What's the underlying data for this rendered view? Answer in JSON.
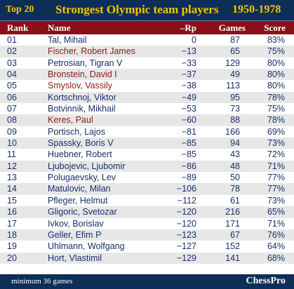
{
  "banner": {
    "top_label": "Top 20",
    "title": "Strongest Olympic team players",
    "years": "1950-1978"
  },
  "headers": {
    "rank": "Rank",
    "name": "Name",
    "rp": "–Rp",
    "games": "Games",
    "score": "Score"
  },
  "rows": [
    {
      "rank": "01",
      "name": "Tal, Mihail",
      "rp": "0",
      "games": "87",
      "score": "83%",
      "highlight": false
    },
    {
      "rank": "02",
      "name": "Fischer, Robert James",
      "rp": "−13",
      "games": "65",
      "score": "75%",
      "highlight": true
    },
    {
      "rank": "03",
      "name": "Petrosian, Tigran V",
      "rp": "−33",
      "games": "129",
      "score": "80%",
      "highlight": false
    },
    {
      "rank": "04",
      "name": "Bronstein, David I",
      "rp": "−37",
      "games": "49",
      "score": "80%",
      "highlight": true
    },
    {
      "rank": "05",
      "name": "Smyslov, Vassily",
      "rp": "−38",
      "games": "113",
      "score": "80%",
      "highlight": true
    },
    {
      "rank": "06",
      "name": "Kortschnoj, Viktor",
      "rp": "−49",
      "games": "95",
      "score": "78%",
      "highlight": false
    },
    {
      "rank": "07",
      "name": "Botvinnik, Mikhail",
      "rp": "−53",
      "games": "73",
      "score": "75%",
      "highlight": false
    },
    {
      "rank": "08",
      "name": "Keres, Paul",
      "rp": "−60",
      "games": "88",
      "score": "78%",
      "highlight": true
    },
    {
      "rank": "09",
      "name": "Portisch, Lajos",
      "rp": "−81",
      "games": "166",
      "score": "69%",
      "highlight": false
    },
    {
      "rank": "10",
      "name": "Spassky, Boris V",
      "rp": "−85",
      "games": "94",
      "score": "73%",
      "highlight": false
    },
    {
      "rank": "11",
      "name": "Huebner, Robert",
      "rp": "−85",
      "games": "43",
      "score": "72%",
      "highlight": false
    },
    {
      "rank": "12",
      "name": "Ljubojevic, Ljubomir",
      "rp": "−86",
      "games": "48",
      "score": "71%",
      "highlight": false
    },
    {
      "rank": "13",
      "name": "Polugaevsky, Lev",
      "rp": "−89",
      "games": "50",
      "score": "77%",
      "highlight": false
    },
    {
      "rank": "14",
      "name": "Matulovic, Milan",
      "rp": "−106",
      "games": "78",
      "score": "77%",
      "highlight": false
    },
    {
      "rank": "15",
      "name": "Pfleger, Helmut",
      "rp": "−112",
      "games": "61",
      "score": "73%",
      "highlight": false
    },
    {
      "rank": "16",
      "name": "Gligoric, Svetozar",
      "rp": "−120",
      "games": "216",
      "score": "65%",
      "highlight": false
    },
    {
      "rank": "17",
      "name": "Ivkov, Borislav",
      "rp": "−120",
      "games": "171",
      "score": "71%",
      "highlight": false
    },
    {
      "rank": "18",
      "name": "Geller, Efim P",
      "rp": "−123",
      "games": "67",
      "score": "76%",
      "highlight": false
    },
    {
      "rank": "19",
      "name": "Uhlmann, Wolfgang",
      "rp": "−127",
      "games": "152",
      "score": "64%",
      "highlight": false
    },
    {
      "rank": "20",
      "name": "Hort, Vlastimil",
      "rp": "−129",
      "games": "141",
      "score": "68%",
      "highlight": false
    }
  ],
  "footer": {
    "note": "minimum 36 games",
    "brand": "ChessPro"
  },
  "colors": {
    "banner_bg": "#0d2e57",
    "banner_text": "#f5c300",
    "header_bg": "#8b0f17",
    "row_text": "#1a2f6b",
    "highlight_text": "#8b1a1a",
    "alt_row_bg": "#e7e7e7"
  }
}
